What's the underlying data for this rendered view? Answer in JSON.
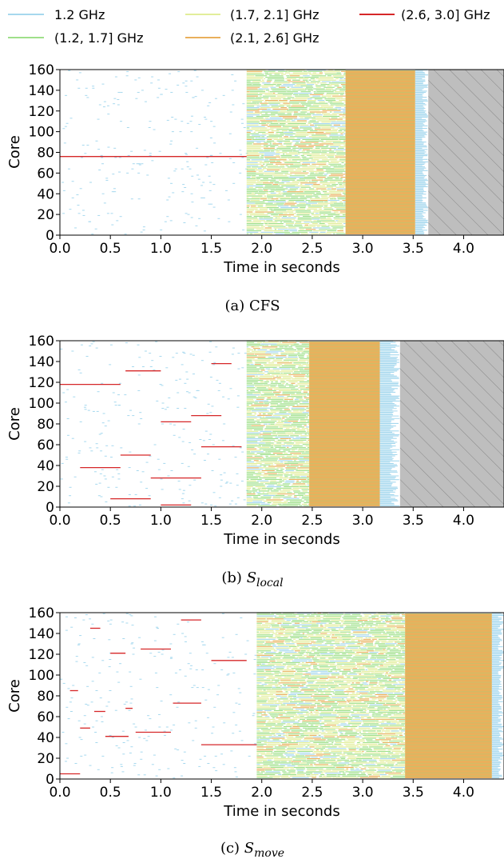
{
  "legend": [
    {
      "label": "1.2 GHz",
      "color": "#a6d8ee"
    },
    {
      "label": "(1.2, 1.7] GHz",
      "color": "#9fe08a"
    },
    {
      "label": "(1.7, 2.1] GHz",
      "color": "#e2ee9a"
    },
    {
      "label": "(2.1, 2.6] GHz",
      "color": "#e9b05c"
    },
    {
      "label": "(2.6, 3.0] GHz",
      "color": "#d62728"
    }
  ],
  "chart_data": [
    {
      "type": "scatter",
      "subplot": "a",
      "caption_prefix": "(a) ",
      "caption_main": "CFS",
      "caption_sub": "",
      "xlabel": "Time in seconds",
      "ylabel": "Core",
      "xlim": [
        0.0,
        4.4
      ],
      "ylim": [
        0,
        160
      ],
      "xticks": [
        "0.0",
        "0.5",
        "1.0",
        "1.5",
        "2.0",
        "2.5",
        "3.0",
        "3.5",
        "4.0"
      ],
      "yticks": [
        "0",
        "20",
        "40",
        "60",
        "80",
        "100",
        "120",
        "140",
        "160"
      ],
      "phases": [
        {
          "start": 0.0,
          "end": 1.85,
          "mix": "sparse-idle"
        },
        {
          "start": 1.85,
          "end": 2.83,
          "mix": "mixed-low"
        },
        {
          "start": 2.83,
          "end": 3.52,
          "mix": "all-2.1-2.6"
        },
        {
          "start": 3.52,
          "end": 3.65,
          "mix": "tail-1.2"
        }
      ],
      "finish_time": 3.65,
      "hatched_region": [
        3.65,
        4.4
      ],
      "highlights": [
        {
          "core": 76,
          "start": 0.0,
          "end": 1.85,
          "freq": "(2.6, 3.0] GHz"
        }
      ]
    },
    {
      "type": "scatter",
      "subplot": "b",
      "caption_prefix": "(b) ",
      "caption_main": "S",
      "caption_sub": "local",
      "xlabel": "Time in seconds",
      "ylabel": "Core",
      "xlim": [
        0.0,
        4.4
      ],
      "ylim": [
        0,
        160
      ],
      "xticks": [
        "0.0",
        "0.5",
        "1.0",
        "1.5",
        "2.0",
        "2.5",
        "3.0",
        "3.5",
        "4.0"
      ],
      "yticks": [
        "0",
        "20",
        "40",
        "60",
        "80",
        "100",
        "120",
        "140",
        "160"
      ],
      "phases": [
        {
          "start": 0.0,
          "end": 1.85,
          "mix": "sparse-idle"
        },
        {
          "start": 1.85,
          "end": 2.47,
          "mix": "mixed-low"
        },
        {
          "start": 2.47,
          "end": 3.17,
          "mix": "all-2.1-2.6"
        },
        {
          "start": 3.17,
          "end": 3.37,
          "mix": "tail-1.2"
        }
      ],
      "finish_time": 3.37,
      "hatched_region": [
        3.37,
        4.4
      ],
      "highlights": [
        {
          "core": 118,
          "start": 0.0,
          "end": 0.6,
          "freq": "(2.6, 3.0] GHz"
        },
        {
          "core": 131,
          "start": 0.65,
          "end": 1.0,
          "freq": "(2.6, 3.0] GHz"
        },
        {
          "core": 28,
          "start": 0.9,
          "end": 1.4,
          "freq": "(2.6, 3.0] GHz"
        },
        {
          "core": 50,
          "start": 0.6,
          "end": 0.9,
          "freq": "(2.6, 3.0] GHz"
        },
        {
          "core": 58,
          "start": 1.4,
          "end": 1.8,
          "freq": "(2.6, 3.0] GHz"
        },
        {
          "core": 88,
          "start": 1.3,
          "end": 1.6,
          "freq": "(2.6, 3.0] GHz"
        },
        {
          "core": 38,
          "start": 0.2,
          "end": 0.6,
          "freq": "(2.6, 3.0] GHz"
        },
        {
          "core": 2,
          "start": 1.0,
          "end": 1.3,
          "freq": "(2.6, 3.0] GHz"
        },
        {
          "core": 138,
          "start": 1.5,
          "end": 1.7,
          "freq": "(2.6, 3.0] GHz"
        },
        {
          "core": 82,
          "start": 1.0,
          "end": 1.3,
          "freq": "(2.6, 3.0] GHz"
        },
        {
          "core": 8,
          "start": 0.5,
          "end": 0.9,
          "freq": "(2.6, 3.0] GHz"
        }
      ]
    },
    {
      "type": "scatter",
      "subplot": "c",
      "caption_prefix": "(c) ",
      "caption_main": "S",
      "caption_sub": "move",
      "xlabel": "Time in seconds",
      "ylabel": "Core",
      "xlim": [
        0.0,
        4.4
      ],
      "ylim": [
        0,
        160
      ],
      "xticks": [
        "0.0",
        "0.5",
        "1.0",
        "1.5",
        "2.0",
        "2.5",
        "3.0",
        "3.5",
        "4.0"
      ],
      "yticks": [
        "0",
        "20",
        "40",
        "60",
        "80",
        "100",
        "120",
        "140",
        "160"
      ],
      "phases": [
        {
          "start": 0.0,
          "end": 1.95,
          "mix": "sparse-idle"
        },
        {
          "start": 1.95,
          "end": 3.42,
          "mix": "mixed-low"
        },
        {
          "start": 3.42,
          "end": 4.28,
          "mix": "all-2.1-2.6"
        },
        {
          "start": 4.28,
          "end": 4.4,
          "mix": "tail-1.2"
        }
      ],
      "finish_time": 4.4,
      "hatched_region": null,
      "highlights": [
        {
          "core": 5,
          "start": 0.0,
          "end": 0.2,
          "freq": "(2.6, 3.0] GHz"
        },
        {
          "core": 33,
          "start": 1.4,
          "end": 1.95,
          "freq": "(2.6, 3.0] GHz"
        },
        {
          "core": 41,
          "start": 0.45,
          "end": 0.68,
          "freq": "(2.6, 3.0] GHz"
        },
        {
          "core": 45,
          "start": 0.75,
          "end": 1.1,
          "freq": "(2.6, 3.0] GHz"
        },
        {
          "core": 49,
          "start": 0.2,
          "end": 0.3,
          "freq": "(2.6, 3.0] GHz"
        },
        {
          "core": 65,
          "start": 0.34,
          "end": 0.45,
          "freq": "(2.6, 3.0] GHz"
        },
        {
          "core": 68,
          "start": 0.65,
          "end": 0.72,
          "freq": "(2.6, 3.0] GHz"
        },
        {
          "core": 73,
          "start": 1.12,
          "end": 1.4,
          "freq": "(2.6, 3.0] GHz"
        },
        {
          "core": 85,
          "start": 0.1,
          "end": 0.18,
          "freq": "(2.6, 3.0] GHz"
        },
        {
          "core": 114,
          "start": 1.5,
          "end": 1.85,
          "freq": "(2.6, 3.0] GHz"
        },
        {
          "core": 121,
          "start": 0.5,
          "end": 0.65,
          "freq": "(2.6, 3.0] GHz"
        },
        {
          "core": 125,
          "start": 0.8,
          "end": 1.1,
          "freq": "(2.6, 3.0] GHz"
        },
        {
          "core": 145,
          "start": 0.3,
          "end": 0.4,
          "freq": "(2.6, 3.0] GHz"
        },
        {
          "core": 153,
          "start": 1.2,
          "end": 1.4,
          "freq": "(2.6, 3.0] GHz"
        }
      ]
    }
  ]
}
